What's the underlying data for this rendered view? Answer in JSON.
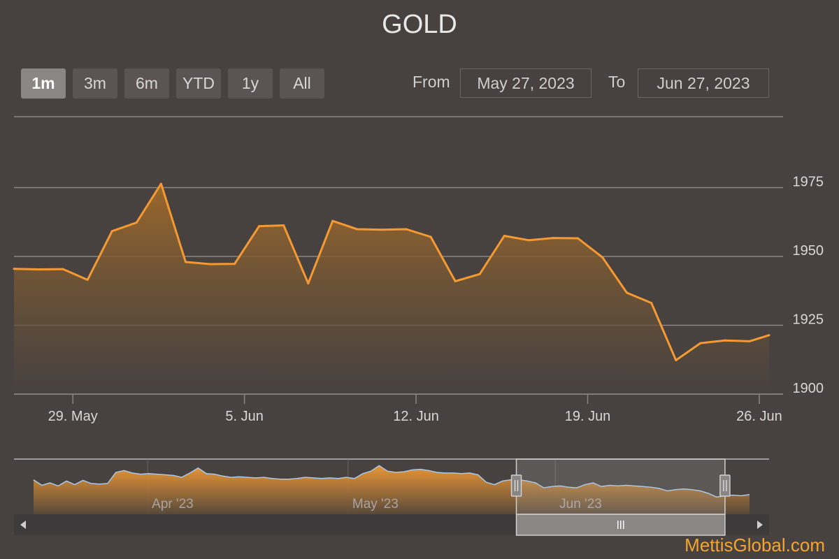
{
  "chart_data": {
    "type": "area",
    "title": "GOLD",
    "range_selector": {
      "buttons": [
        "1m",
        "3m",
        "6m",
        "YTD",
        "1y",
        "All"
      ],
      "selected": "1m",
      "from_label": "From",
      "from_value": "May 27, 2023",
      "to_label": "To",
      "to_value": "Jun 27, 2023"
    },
    "y_axis": {
      "ticks": [
        "1900",
        "1925",
        "1950",
        "1975"
      ],
      "min": 1900,
      "max": 2000,
      "grid": true
    },
    "x_axis": {
      "range_days": [
        -0.4,
        30.4
      ],
      "ticks": [
        {
          "label": "29. May",
          "day": 2
        },
        {
          "label": "5. Jun",
          "day": 9
        },
        {
          "label": "12. Jun",
          "day": 16
        },
        {
          "label": "19. Jun",
          "day": 23
        },
        {
          "label": "26. Jun",
          "day": 30
        }
      ]
    },
    "series": [
      {
        "color": "#f59a33",
        "points": [
          [
            -0.4,
            1945.5
          ],
          [
            0.6,
            1945.3
          ],
          [
            1.6,
            1945.4
          ],
          [
            2.6,
            1941.5
          ],
          [
            3.6,
            1959.2
          ],
          [
            4.6,
            1962.3
          ],
          [
            5.6,
            1976.4
          ],
          [
            6.6,
            1948.0
          ],
          [
            7.6,
            1947.2
          ],
          [
            8.6,
            1947.3
          ],
          [
            9.6,
            1961.0
          ],
          [
            10.6,
            1961.3
          ],
          [
            11.6,
            1940.2
          ],
          [
            12.6,
            1962.9
          ],
          [
            13.6,
            1959.9
          ],
          [
            14.6,
            1959.7
          ],
          [
            15.6,
            1959.9
          ],
          [
            16.6,
            1957.1
          ],
          [
            17.6,
            1941.0
          ],
          [
            18.6,
            1943.6
          ],
          [
            19.6,
            1957.5
          ],
          [
            20.6,
            1955.9
          ],
          [
            21.6,
            1956.7
          ],
          [
            22.6,
            1956.6
          ],
          [
            23.6,
            1949.7
          ],
          [
            24.6,
            1936.8
          ],
          [
            25.6,
            1933.1
          ],
          [
            26.6,
            1912.3
          ],
          [
            27.6,
            1918.5
          ],
          [
            28.6,
            1919.5
          ],
          [
            29.6,
            1919.2
          ],
          [
            30.4,
            1921.4
          ]
        ]
      }
    ],
    "navigator": {
      "labels": [
        {
          "text": "Apr '23",
          "day": -56
        },
        {
          "text": "May '23",
          "day": -26
        },
        {
          "text": "Jun '23",
          "day": 5
        }
      ],
      "range_days": [
        -76,
        37
      ],
      "selected_days": [
        -0.4,
        30.4
      ],
      "values": [
        1946,
        1937,
        1941,
        1936,
        1944,
        1938,
        1945,
        1940,
        1939,
        1940,
        1958,
        1961,
        1957,
        1955,
        1956,
        1955,
        1954,
        1953,
        1950,
        1957,
        1965,
        1956,
        1955,
        1952,
        1950,
        1951,
        1950,
        1949,
        1950,
        1948,
        1947,
        1947,
        1948,
        1950,
        1949,
        1948,
        1949,
        1948,
        1950,
        1948,
        1956,
        1960,
        1969,
        1960,
        1958,
        1959,
        1962,
        1963,
        1961,
        1958,
        1957,
        1957,
        1956,
        1957,
        1954,
        1942,
        1938,
        1944,
        1946,
        1946,
        1944,
        1941,
        1933,
        1935,
        1936,
        1934,
        1933,
        1938,
        1941,
        1935,
        1937,
        1936,
        1937,
        1936,
        1935,
        1934,
        1932,
        1928,
        1930,
        1931,
        1930,
        1928,
        1924,
        1918,
        1920,
        1921,
        1920,
        1922
      ]
    }
  },
  "watermark": "MettisGlobal.com",
  "colors": {
    "background": "#474240",
    "line": "#f59a33",
    "grid": "#8a8684",
    "navigator_line": "#a8c8e8"
  }
}
